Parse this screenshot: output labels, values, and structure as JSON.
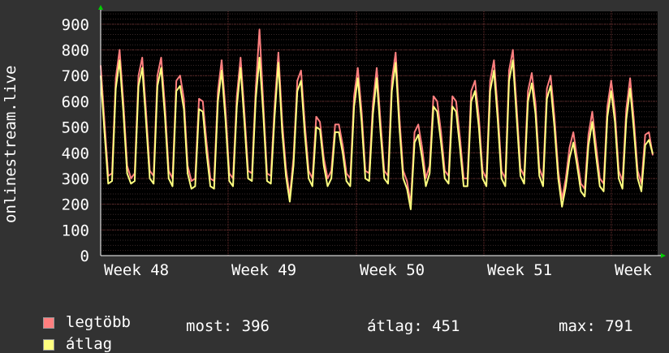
{
  "chart_data": {
    "type": "line",
    "ylabel": "onlinestream.live",
    "ylim": [
      0,
      950
    ],
    "yticks": [
      0,
      100,
      200,
      300,
      400,
      500,
      600,
      700,
      800,
      900
    ],
    "xticks": [
      "Week 48",
      "Week 49",
      "Week 50",
      "Week 51",
      "Week"
    ],
    "grid": true,
    "series": [
      {
        "name": "legtöbb",
        "color": "#ff7f7f",
        "values": [
          740,
          520,
          310,
          320,
          690,
          800,
          600,
          350,
          300,
          320,
          700,
          770,
          560,
          330,
          310,
          700,
          770,
          580,
          330,
          300,
          680,
          700,
          610,
          350,
          290,
          300,
          610,
          600,
          440,
          300,
          290,
          640,
          760,
          570,
          320,
          300,
          620,
          770,
          560,
          330,
          320,
          650,
          880,
          590,
          320,
          310,
          580,
          790,
          520,
          340,
          230,
          380,
          680,
          720,
          510,
          330,
          300,
          540,
          520,
          380,
          300,
          330,
          510,
          510,
          430,
          320,
          300,
          620,
          730,
          560,
          330,
          320,
          590,
          730,
          520,
          330,
          310,
          680,
          790,
          540,
          330,
          290,
          200,
          480,
          510,
          420,
          300,
          350,
          620,
          600,
          480,
          330,
          310,
          620,
          600,
          460,
          300,
          300,
          640,
          680,
          540,
          330,
          300,
          680,
          760,
          570,
          330,
          300,
          720,
          800,
          580,
          340,
          310,
          640,
          710,
          590,
          340,
          300,
          650,
          700,
          540,
          330,
          220,
          300,
          420,
          480,
          380,
          280,
          260,
          470,
          560,
          430,
          300,
          280,
          580,
          680,
          560,
          330,
          290,
          570,
          690,
          530,
          330,
          280,
          470,
          480,
          390
        ]
      },
      {
        "name": "átlag",
        "color": "#ffff7f",
        "values": [
          700,
          480,
          280,
          290,
          650,
          760,
          560,
          320,
          280,
          290,
          660,
          730,
          520,
          300,
          280,
          660,
          730,
          540,
          300,
          270,
          640,
          660,
          570,
          320,
          260,
          270,
          570,
          560,
          400,
          270,
          260,
          600,
          720,
          530,
          290,
          270,
          580,
          730,
          520,
          300,
          290,
          610,
          770,
          550,
          290,
          280,
          540,
          750,
          480,
          310,
          210,
          350,
          640,
          680,
          470,
          300,
          270,
          500,
          490,
          350,
          270,
          300,
          480,
          480,
          400,
          290,
          270,
          580,
          690,
          520,
          300,
          290,
          550,
          690,
          480,
          300,
          280,
          640,
          750,
          500,
          300,
          260,
          180,
          440,
          470,
          380,
          270,
          320,
          580,
          560,
          440,
          300,
          280,
          580,
          560,
          420,
          270,
          270,
          600,
          640,
          500,
          300,
          270,
          640,
          720,
          530,
          300,
          270,
          680,
          760,
          540,
          310,
          280,
          600,
          670,
          550,
          310,
          270,
          610,
          660,
          500,
          300,
          190,
          270,
          380,
          440,
          350,
          250,
          230,
          430,
          520,
          390,
          270,
          250,
          540,
          640,
          520,
          300,
          260,
          530,
          650,
          490,
          300,
          250,
          430,
          450,
          396
        ]
      }
    ],
    "legend": [
      {
        "label": "legtöbb",
        "color": "#ff7f7f"
      },
      {
        "label": "átlag",
        "color": "#ffff7f"
      }
    ],
    "stats": {
      "most": "most: 396",
      "atlag": "átlag: 451",
      "max": "max: 791"
    }
  }
}
